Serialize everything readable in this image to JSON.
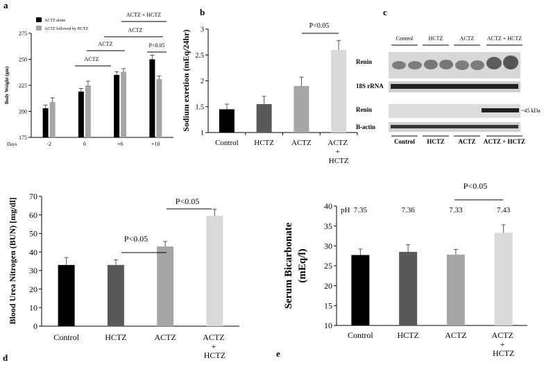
{
  "chart_data": [
    {
      "type": "bar",
      "panel": "a",
      "ylabel": "Body Weight (gm)",
      "xlabel": "Days",
      "categories": [
        "-2",
        "0",
        "+6",
        "+10"
      ],
      "series": [
        {
          "name": "ACTZ alone",
          "color": "#000000",
          "values": [
            203,
            219,
            235,
            250
          ],
          "errors": [
            3,
            3,
            3,
            4
          ]
        },
        {
          "name": "ACTZ followed by HCTZ",
          "color": "#a6a6a6",
          "values": [
            209,
            225,
            238,
            231
          ],
          "errors": [
            4,
            4,
            3,
            3
          ]
        }
      ],
      "ylim": [
        175,
        275
      ],
      "yticks": [
        175,
        200,
        225,
        250,
        275
      ],
      "annotations": [
        "ACTZ + HCTZ",
        "ACTZ",
        "ACTZ",
        "ACTZ",
        "P<0.05"
      ]
    },
    {
      "type": "bar",
      "panel": "b",
      "ylabel": "Sodium exretion  (mEq/24hr)",
      "categories": [
        "Control",
        "HCTZ",
        "ACTZ",
        "ACTZ + HCTZ"
      ],
      "values": [
        1.45,
        1.55,
        1.9,
        2.6
      ],
      "errors": [
        0.1,
        0.15,
        0.17,
        0.18
      ],
      "colors": [
        "#000000",
        "#595959",
        "#a6a6a6",
        "#d9d9d9"
      ],
      "ylim": [
        1,
        3
      ],
      "yticks": [
        1,
        1.5,
        2,
        2.5,
        3
      ],
      "annotations": [
        "P<0.05"
      ]
    },
    {
      "type": "bar",
      "panel": "d",
      "ylabel": "Blood Urea Nitrogen (BUN) [mg/dl]",
      "categories": [
        "Control",
        "HCTZ",
        "ACTZ",
        "ACTZ + HCTZ"
      ],
      "values": [
        33,
        33,
        43,
        59.5
      ],
      "errors": [
        4,
        2.8,
        2.7,
        3.6
      ],
      "colors": [
        "#000000",
        "#595959",
        "#a6a6a6",
        "#d9d9d9"
      ],
      "ylim": [
        0,
        70
      ],
      "yticks": [
        0,
        10,
        20,
        30,
        40,
        50,
        60,
        70
      ],
      "annotations": [
        "P<0.05",
        "P<0.05"
      ]
    },
    {
      "type": "bar",
      "panel": "e",
      "ylabel": [
        "Serum Bicarbonate",
        "(mEq/l)"
      ],
      "categories": [
        "Control",
        "HCTZ",
        "ACTZ",
        "ACTZ + HCTZ"
      ],
      "values": [
        27.7,
        28.5,
        27.8,
        33.3
      ],
      "errors": [
        1.5,
        1.8,
        1.3,
        2
      ],
      "colors": [
        "#000000",
        "#595959",
        "#a6a6a6",
        "#d9d9d9"
      ],
      "ylim": [
        10,
        40
      ],
      "yticks": [
        10,
        15,
        20,
        25,
        30,
        35,
        40
      ],
      "ph_label": "pH",
      "ph": [
        7.35,
        7.36,
        7.33,
        7.43
      ],
      "annotations": [
        "P<0.05"
      ]
    }
  ],
  "blot": {
    "panel": "c",
    "columns": [
      "Control",
      "HCTZ",
      "ACTZ",
      "ACTZ + HCTZ"
    ],
    "rows": [
      "Renin",
      "18S rRNA",
      "Renin",
      "B-actin"
    ],
    "size_label": "~45 kDa"
  }
}
